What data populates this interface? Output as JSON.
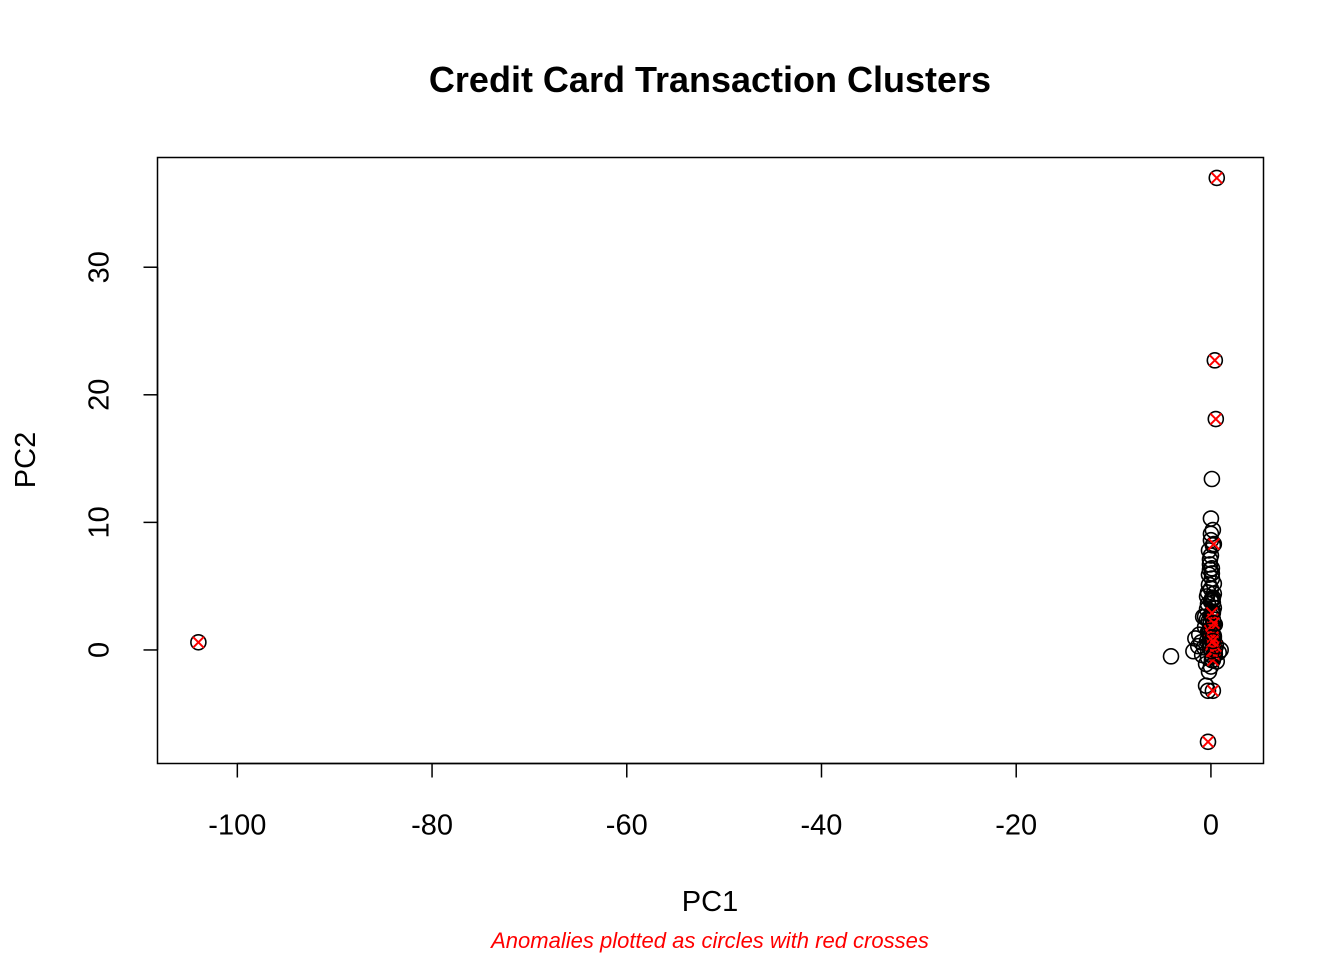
{
  "chart_data": {
    "type": "scatter",
    "title": "Credit Card Transaction Clusters",
    "xlabel": "PC1",
    "ylabel": "PC2",
    "caption": "Anomalies plotted as circles with red crosses",
    "xlim": [
      -108.2,
      5.4
    ],
    "ylim": [
      -8.9,
      38.6
    ],
    "xticks": [
      -100,
      -80,
      -60,
      -40,
      -20,
      0
    ],
    "xtick_labels": [
      "-100",
      "-80",
      "-60",
      "-40",
      "-20",
      "0"
    ],
    "yticks": [
      0,
      10,
      20,
      30
    ],
    "ytick_labels": [
      "0",
      "10",
      "20",
      "30"
    ],
    "grid": false,
    "colors": {
      "point": "#000000",
      "anomaly_cross": "#ff0000",
      "caption": "#ff0000"
    },
    "series": [
      {
        "marker": "circle",
        "x": [
          -4.1,
          -1.8,
          -1.6,
          -1.3,
          -1.2,
          -1.0,
          -0.9,
          -0.8,
          -0.7,
          -0.6,
          -0.5,
          -0.4,
          -0.4,
          -0.3,
          -0.3,
          -0.2,
          -0.2,
          -0.1,
          -0.1,
          0.0,
          0.0,
          0.1,
          0.1,
          0.2,
          0.2,
          0.3,
          0.3,
          0.4,
          0.5,
          0.6,
          0.8,
          1.0,
          -0.5,
          -0.3,
          -0.2,
          0.0,
          0.1,
          0.2,
          -0.3,
          0.0,
          0.2,
          -0.1,
          0.1,
          -0.4,
          0.3,
          0.0,
          0.1,
          -0.2,
          0.2,
          0.0,
          0.1,
          0.3,
          -0.1,
          0.2,
          0.0,
          0.2,
          0.1,
          -0.3,
          0.4,
          0.0,
          -0.2,
          0.1,
          0.2,
          -0.1,
          0.0,
          -0.4,
          -0.2,
          0.1,
          -0.6,
          0.3,
          0.0,
          -0.1
        ],
        "y": [
          -0.5,
          -0.1,
          0.9,
          0.3,
          1.2,
          0.6,
          -0.4,
          2.6,
          0.2,
          1.8,
          -1.1,
          0.7,
          3.2,
          -0.6,
          4.5,
          1.3,
          5.9,
          0.1,
          7.1,
          2.2,
          8.6,
          3.9,
          6.4,
          2.9,
          9.4,
          1.1,
          5.2,
          -0.3,
          0.4,
          -0.9,
          -0.2,
          0.0,
          -2.8,
          -3.2,
          -1.7,
          -1.3,
          -0.8,
          -0.5,
          3.6,
          4.8,
          4.1,
          6.7,
          6.0,
          2.4,
          3.3,
          10.3,
          13.4,
          7.8,
          8.2,
          9.1,
          5.6,
          4.4,
          1.6,
          1.9,
          2.7,
          3.0,
          0.8,
          1.4,
          2.0,
          7.4,
          5.1,
          4.0,
          3.7,
          0.5,
          0.9,
          4.2,
          2.3,
          1.5,
          2.6,
          1.0,
          3.8,
          6.3
        ]
      },
      {
        "name": "Anomalies",
        "marker": "circle-x",
        "x": [
          -104.0,
          0.6,
          0.4,
          0.5,
          -0.3,
          0.2,
          0.3,
          0.2,
          0.1,
          0.0,
          0.3,
          0.2,
          0.4,
          0.1,
          0.3,
          -0.1,
          0.2,
          0.4,
          0.0,
          0.2,
          0.3,
          0.1,
          0.5,
          0.2
        ],
        "y": [
          0.6,
          37.0,
          22.7,
          18.1,
          -7.2,
          -3.2,
          8.3,
          2.4,
          1.8,
          1.2,
          0.6,
          0.2,
          -0.4,
          2.9,
          0.9,
          1.5,
          -0.8,
          0.0,
          0.4,
          1.0,
          2.1,
          -0.1,
          0.3,
          0.7
        ]
      }
    ]
  }
}
